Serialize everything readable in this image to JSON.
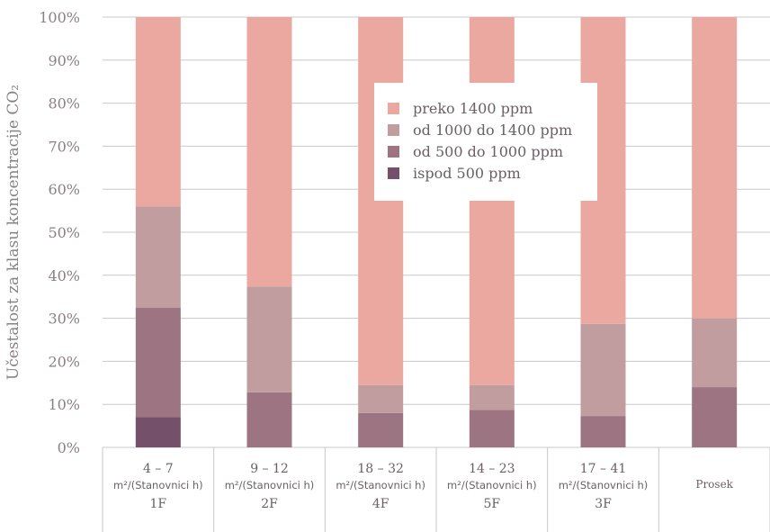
{
  "chart_data": {
    "type": "bar",
    "stacked": true,
    "ylabel": "Učestalost za klasu koncentracije CO₂",
    "ylim": [
      0,
      100
    ],
    "yticks": [
      "0%",
      "10%",
      "20%",
      "30%",
      "40%",
      "50%",
      "60%",
      "70%",
      "80%",
      "90%",
      "100%"
    ],
    "grid": true,
    "legend_position": "center-right",
    "categories": [
      {
        "range": "4 – 7",
        "unit": "m²/(Stanovnici h)",
        "floor": "1F",
        "label": ""
      },
      {
        "range": "9 – 12",
        "unit": "m²/(Stanovnici h)",
        "floor": "2F",
        "label": ""
      },
      {
        "range": "18 – 32",
        "unit": "m²/(Stanovnici h)",
        "floor": "4F",
        "label": ""
      },
      {
        "range": "14 – 23",
        "unit": "m²/(Stanovnici h)",
        "floor": "5F",
        "label": ""
      },
      {
        "range": "17 – 41",
        "unit": "m²/(Stanovnici h)",
        "floor": "3F",
        "label": ""
      },
      {
        "range": "",
        "unit": "",
        "floor": "",
        "label": "Prosek"
      }
    ],
    "series": [
      {
        "name": "ispod 500 ppm",
        "color": "#74506a",
        "values": [
          7,
          0,
          0,
          0,
          0,
          0
        ]
      },
      {
        "name": "od 500 do 1000 ppm",
        "color": "#9c7482",
        "values": [
          25.5,
          12.8,
          8,
          8.7,
          7.3,
          14
        ]
      },
      {
        "name": "od 1000 do 1400 ppm",
        "color": "#c29da0",
        "values": [
          23.5,
          24.6,
          6.5,
          5.8,
          21.4,
          16
        ]
      },
      {
        "name": "preko 1400 ppm",
        "color": "#eba8a0",
        "values": [
          44,
          62.6,
          85.5,
          85.5,
          71.3,
          70
        ]
      }
    ]
  }
}
